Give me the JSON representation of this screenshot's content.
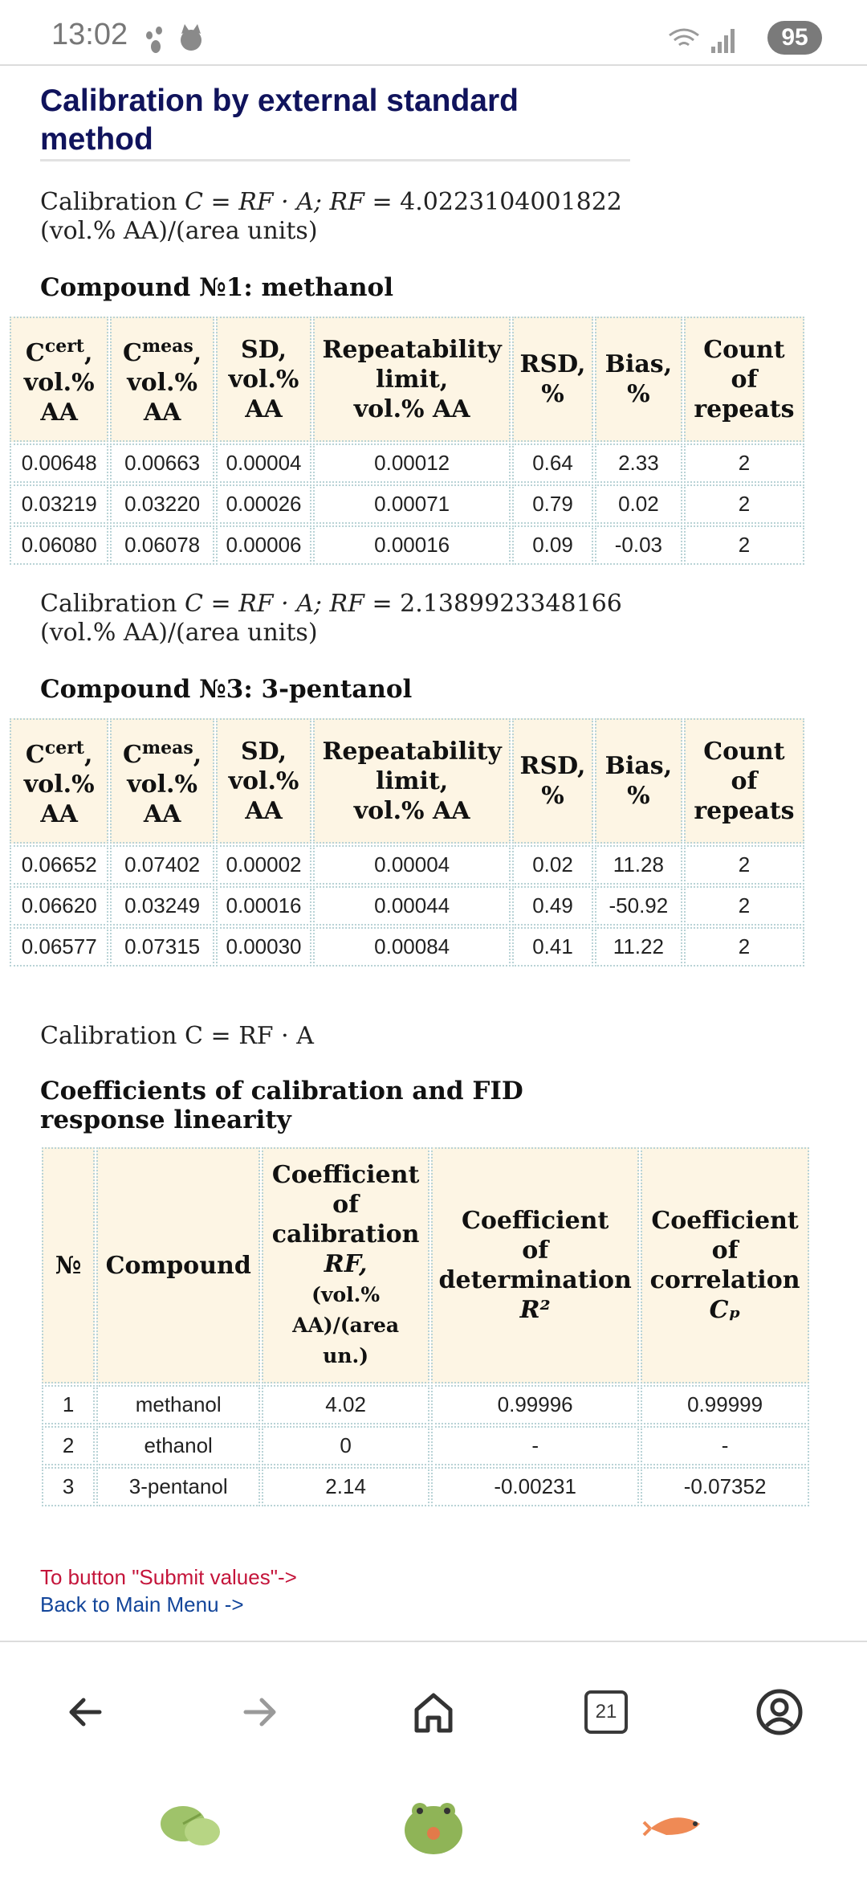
{
  "status_bar": {
    "time": "13:02",
    "battery": "95",
    "left_icons": [
      "paw-icon",
      "cat-face-icon"
    ],
    "right_icons": [
      "wifi-icon",
      "signal-icon"
    ]
  },
  "page": {
    "title": "Calibration by external standard method"
  },
  "section1": {
    "calibration_prefix": "Calibration ",
    "formula": "C = RF · A; RF =",
    "rf_value": "4.0223104001822",
    "units": "(vol.% AA)/(area units)",
    "compound_heading": "Compound №1: methanol",
    "columns": [
      "vol.% AA",
      "vol.% AA",
      "SD, vol.% AA",
      "Repeatability limit, vol.% AA",
      "RSD, %",
      "Bias, %",
      "Count of repeats"
    ],
    "rows": [
      [
        "0.00648",
        "0.00663",
        "0.00004",
        "0.00012",
        "0.64",
        "2.33",
        "2"
      ],
      [
        "0.03219",
        "0.03220",
        "0.00026",
        "0.00071",
        "0.79",
        "0.02",
        "2"
      ],
      [
        "0.06080",
        "0.06078",
        "0.00006",
        "0.00016",
        "0.09",
        "-0.03",
        "2"
      ]
    ]
  },
  "section2": {
    "calibration_prefix": "Calibration ",
    "formula": "C = RF · A; RF =",
    "rf_value": "2.1389923348166",
    "units": "(vol.% AA)/(area units)",
    "compound_heading": "Compound №3: 3-pentanol",
    "rows": [
      [
        "0.06652",
        "0.07402",
        "0.00002",
        "0.00004",
        "0.02",
        "11.28",
        "2"
      ],
      [
        "0.06620",
        "0.03249",
        "0.00016",
        "0.00044",
        "0.49",
        "-50.92",
        "2"
      ],
      [
        "0.06577",
        "0.07315",
        "0.00030",
        "0.00084",
        "0.41",
        "11.22",
        "2"
      ]
    ]
  },
  "headers": {
    "c": "C",
    "cert": "cert",
    "meas": "meas",
    "comma": ",",
    "vol": "vol.%",
    "aa": "AA",
    "sd": "SD,",
    "repeat1": "Repeatability",
    "repeat2": "limit,",
    "repeat3": "vol.% AA",
    "rsd1": "RSD,",
    "pct": "%",
    "bias1": "Bias,",
    "count1": "Count",
    "count2": "of",
    "count3": "repeats"
  },
  "section3": {
    "calibration_line": "Calibration C = RF · A",
    "heading": "Coefficients of calibration and FID response linearity",
    "col_no": "№",
    "col_compound": "Compound",
    "col_rf_lines": [
      "Coefficient",
      "of",
      "calibration",
      "RF,"
    ],
    "col_rf_unit_lines": [
      "(vol.%",
      "AA)/(area",
      "un.)"
    ],
    "col_r2_lines": [
      "Coefficient",
      "of",
      "determination",
      "R²"
    ],
    "col_cp_lines": [
      "Coefficient",
      "of",
      "correlation",
      "Cₚ"
    ],
    "rows": [
      [
        "1",
        "methanol",
        "4.02",
        "0.99996",
        "0.99999"
      ],
      [
        "2",
        "ethanol",
        "0",
        "-",
        "-"
      ],
      [
        "3",
        "3-pentanol",
        "2.14",
        "-0.00231",
        "-0.07352"
      ]
    ]
  },
  "links": {
    "submit": "To button \"Submit values\"->",
    "back": "Back to Main Menu ->"
  },
  "nav": {
    "tab_count": "21",
    "icons": [
      "back-arrow-icon",
      "forward-arrow-icon",
      "home-icon",
      "tabs-icon",
      "account-icon"
    ]
  },
  "dock": {
    "icons": [
      "lily-pad-icon",
      "frog-icon",
      "shrimp-icon"
    ]
  },
  "colors": {
    "title": "#10135c",
    "header_bg": "#fdf5e4",
    "submit_link": "#c4143a",
    "back_link": "#12459a"
  }
}
